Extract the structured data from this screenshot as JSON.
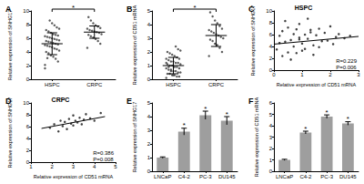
{
  "chart_data": [
    {
      "type": "dotplot",
      "panel": "A",
      "y_label": "Relative expression of SNHG17",
      "categories": [
        "HSPC",
        "CRPC"
      ],
      "values": [
        [
          2.1,
          2.6,
          3.0,
          3.3,
          3.5,
          3.8,
          4.0,
          4.2,
          4.4,
          4.5,
          4.7,
          4.8,
          4.9,
          5.0,
          5.1,
          5.2,
          5.3,
          5.4,
          5.5,
          5.6,
          5.7,
          5.8,
          5.9,
          6.0,
          6.1,
          6.2,
          6.3,
          6.4,
          6.5,
          6.6,
          6.8,
          7.0,
          7.2,
          7.4,
          7.6,
          7.9,
          8.2,
          8.6,
          3.1,
          1.6
        ],
        [
          4.6,
          5.2,
          5.6,
          5.9,
          6.1,
          6.3,
          6.5,
          6.6,
          6.8,
          6.9,
          7.0,
          7.1,
          7.2,
          7.4,
          7.5,
          7.7,
          7.9,
          8.2,
          8.6,
          9.1
        ]
      ],
      "mean": [
        5.2,
        6.9
      ],
      "sd": [
        1.6,
        0.9
      ],
      "color": "#333333",
      "ylim": [
        0,
        10
      ],
      "yticks": [
        0,
        2,
        4,
        6,
        8,
        10
      ],
      "grid": false,
      "annotations": [
        {
          "text": "*",
          "between": [
            "HSPC",
            "CRPC"
          ]
        }
      ]
    },
    {
      "type": "dotplot",
      "panel": "B",
      "y_label": "Relative expression of CD51 mRNA",
      "categories": [
        "HSPC",
        "CRPC"
      ],
      "values": [
        [
          0.1,
          0.2,
          0.2,
          0.3,
          0.3,
          0.4,
          0.4,
          0.5,
          0.5,
          0.6,
          0.6,
          0.7,
          0.7,
          0.8,
          0.8,
          0.9,
          0.9,
          1.0,
          1.0,
          1.1,
          1.1,
          1.2,
          1.2,
          1.3,
          1.3,
          1.4,
          1.5,
          1.5,
          1.6,
          1.7,
          1.8,
          1.9,
          2.0,
          2.1,
          2.2,
          2.4,
          0.3,
          0.6,
          0.9,
          1.2
        ],
        [
          1.7,
          2.0,
          2.3,
          2.5,
          2.6,
          2.8,
          2.9,
          3.0,
          3.1,
          3.2,
          3.3,
          3.4,
          3.5,
          3.6,
          3.7,
          3.9,
          4.1,
          4.3,
          4.6,
          4.9
        ]
      ],
      "mean": [
        1.0,
        3.2
      ],
      "sd": [
        0.6,
        0.8
      ],
      "color": "#333333",
      "ylim": [
        0,
        5
      ],
      "yticks": [
        0,
        1,
        2,
        3,
        4,
        5
      ],
      "grid": false,
      "annotations": [
        {
          "text": "*",
          "between": [
            "HSPC",
            "CRPC"
          ]
        }
      ]
    },
    {
      "type": "scatter",
      "panel": "C",
      "title": "HSPC",
      "x_label": "Relative expression of CD51 mRNA",
      "y_label": "Relative expression of SNHG17",
      "x": [
        0.1,
        0.2,
        0.3,
        0.3,
        0.4,
        0.5,
        0.5,
        0.6,
        0.7,
        0.7,
        0.8,
        0.9,
        0.9,
        1.0,
        1.1,
        1.1,
        1.2,
        1.3,
        1.4,
        1.5,
        1.6,
        1.7,
        1.8,
        1.9,
        2.0,
        2.1,
        2.3,
        2.5,
        2.7,
        0.4,
        0.6,
        0.8,
        1.0,
        1.2,
        1.4,
        0.2,
        1.6,
        2.2,
        0.9,
        1.3
      ],
      "values": [
        3.5,
        5.8,
        2.4,
        6.6,
        4.8,
        3.0,
        7.2,
        5.1,
        4.0,
        6.1,
        2.9,
        5.5,
        7.8,
        4.5,
        6.0,
        3.6,
        5.3,
        6.8,
        4.2,
        5.9,
        7.0,
        4.9,
        6.3,
        5.0,
        7.4,
        4.4,
        6.1,
        5.4,
        5.8,
        8.3,
        1.8,
        6.9,
        3.3,
        8.7,
        2.6,
        4.6,
        3.9,
        5.6,
        5.2,
        6.4
      ],
      "fit": {
        "x": [
          0,
          3
        ],
        "y": [
          4.4,
          5.7
        ]
      },
      "color": "#111111",
      "xlim": [
        0,
        3
      ],
      "xticks": [
        0,
        1,
        2,
        3
      ],
      "ylim": [
        0,
        10
      ],
      "yticks": [
        0,
        2,
        4,
        6,
        8,
        10
      ],
      "grid": false,
      "annotations": [
        "R=0.229",
        "P=0.006"
      ]
    },
    {
      "type": "scatter",
      "panel": "D",
      "title": "CRPC",
      "x_label": "Relative expression of CD51 mRNA",
      "y_label": "Relative expression of SNHG17",
      "x": [
        1.9,
        2.1,
        2.3,
        2.4,
        2.5,
        2.6,
        2.7,
        2.8,
        2.9,
        3.0,
        3.0,
        3.1,
        3.2,
        3.3,
        3.4,
        3.5,
        3.6,
        3.8,
        4.0,
        4.3
      ],
      "values": [
        5.8,
        6.4,
        5.2,
        7.0,
        6.1,
        6.8,
        5.6,
        7.3,
        6.5,
        7.9,
        6.2,
        7.0,
        6.7,
        7.5,
        6.4,
        7.2,
        8.1,
        7.4,
        7.0,
        8.3
      ],
      "fit": {
        "x": [
          1.5,
          4.5
        ],
        "y": [
          5.7,
          7.7
        ]
      },
      "color": "#111111",
      "xlim": [
        1,
        5
      ],
      "xticks": [
        1,
        2,
        3,
        4,
        5
      ],
      "ylim": [
        0,
        10
      ],
      "yticks": [
        0,
        2,
        4,
        6,
        8,
        10
      ],
      "grid": false,
      "annotations": [
        "R=0.386",
        "P=0.008"
      ]
    },
    {
      "type": "bar",
      "panel": "E",
      "y_label": "Relative expression of SNHG17",
      "categories": [
        "LNCaP",
        "C4-2",
        "PC-3",
        "DU145"
      ],
      "values": [
        1,
        2.9,
        4.1,
        3.7
      ],
      "errors": [
        0.05,
        0.25,
        0.3,
        0.3
      ],
      "significance": [
        null,
        "*",
        "*",
        "*"
      ],
      "color": "#9e9e9e",
      "ylim": [
        0,
        5
      ],
      "yticks": [
        0,
        1,
        2,
        3,
        4,
        5
      ],
      "grid": false
    },
    {
      "type": "bar",
      "panel": "F",
      "y_label": "Relative expression of CD51 mRNA",
      "categories": [
        "LNCaP",
        "C4-2",
        "PC-3",
        "DU145"
      ],
      "values": [
        1,
        3.4,
        4.8,
        4.2
      ],
      "errors": [
        0.05,
        0.12,
        0.15,
        0.15
      ],
      "significance": [
        null,
        "*",
        "*",
        "*"
      ],
      "color": "#9e9e9e",
      "ylim": [
        0,
        6
      ],
      "yticks": [
        0,
        1,
        2,
        3,
        4,
        5,
        6
      ],
      "grid": false
    }
  ]
}
